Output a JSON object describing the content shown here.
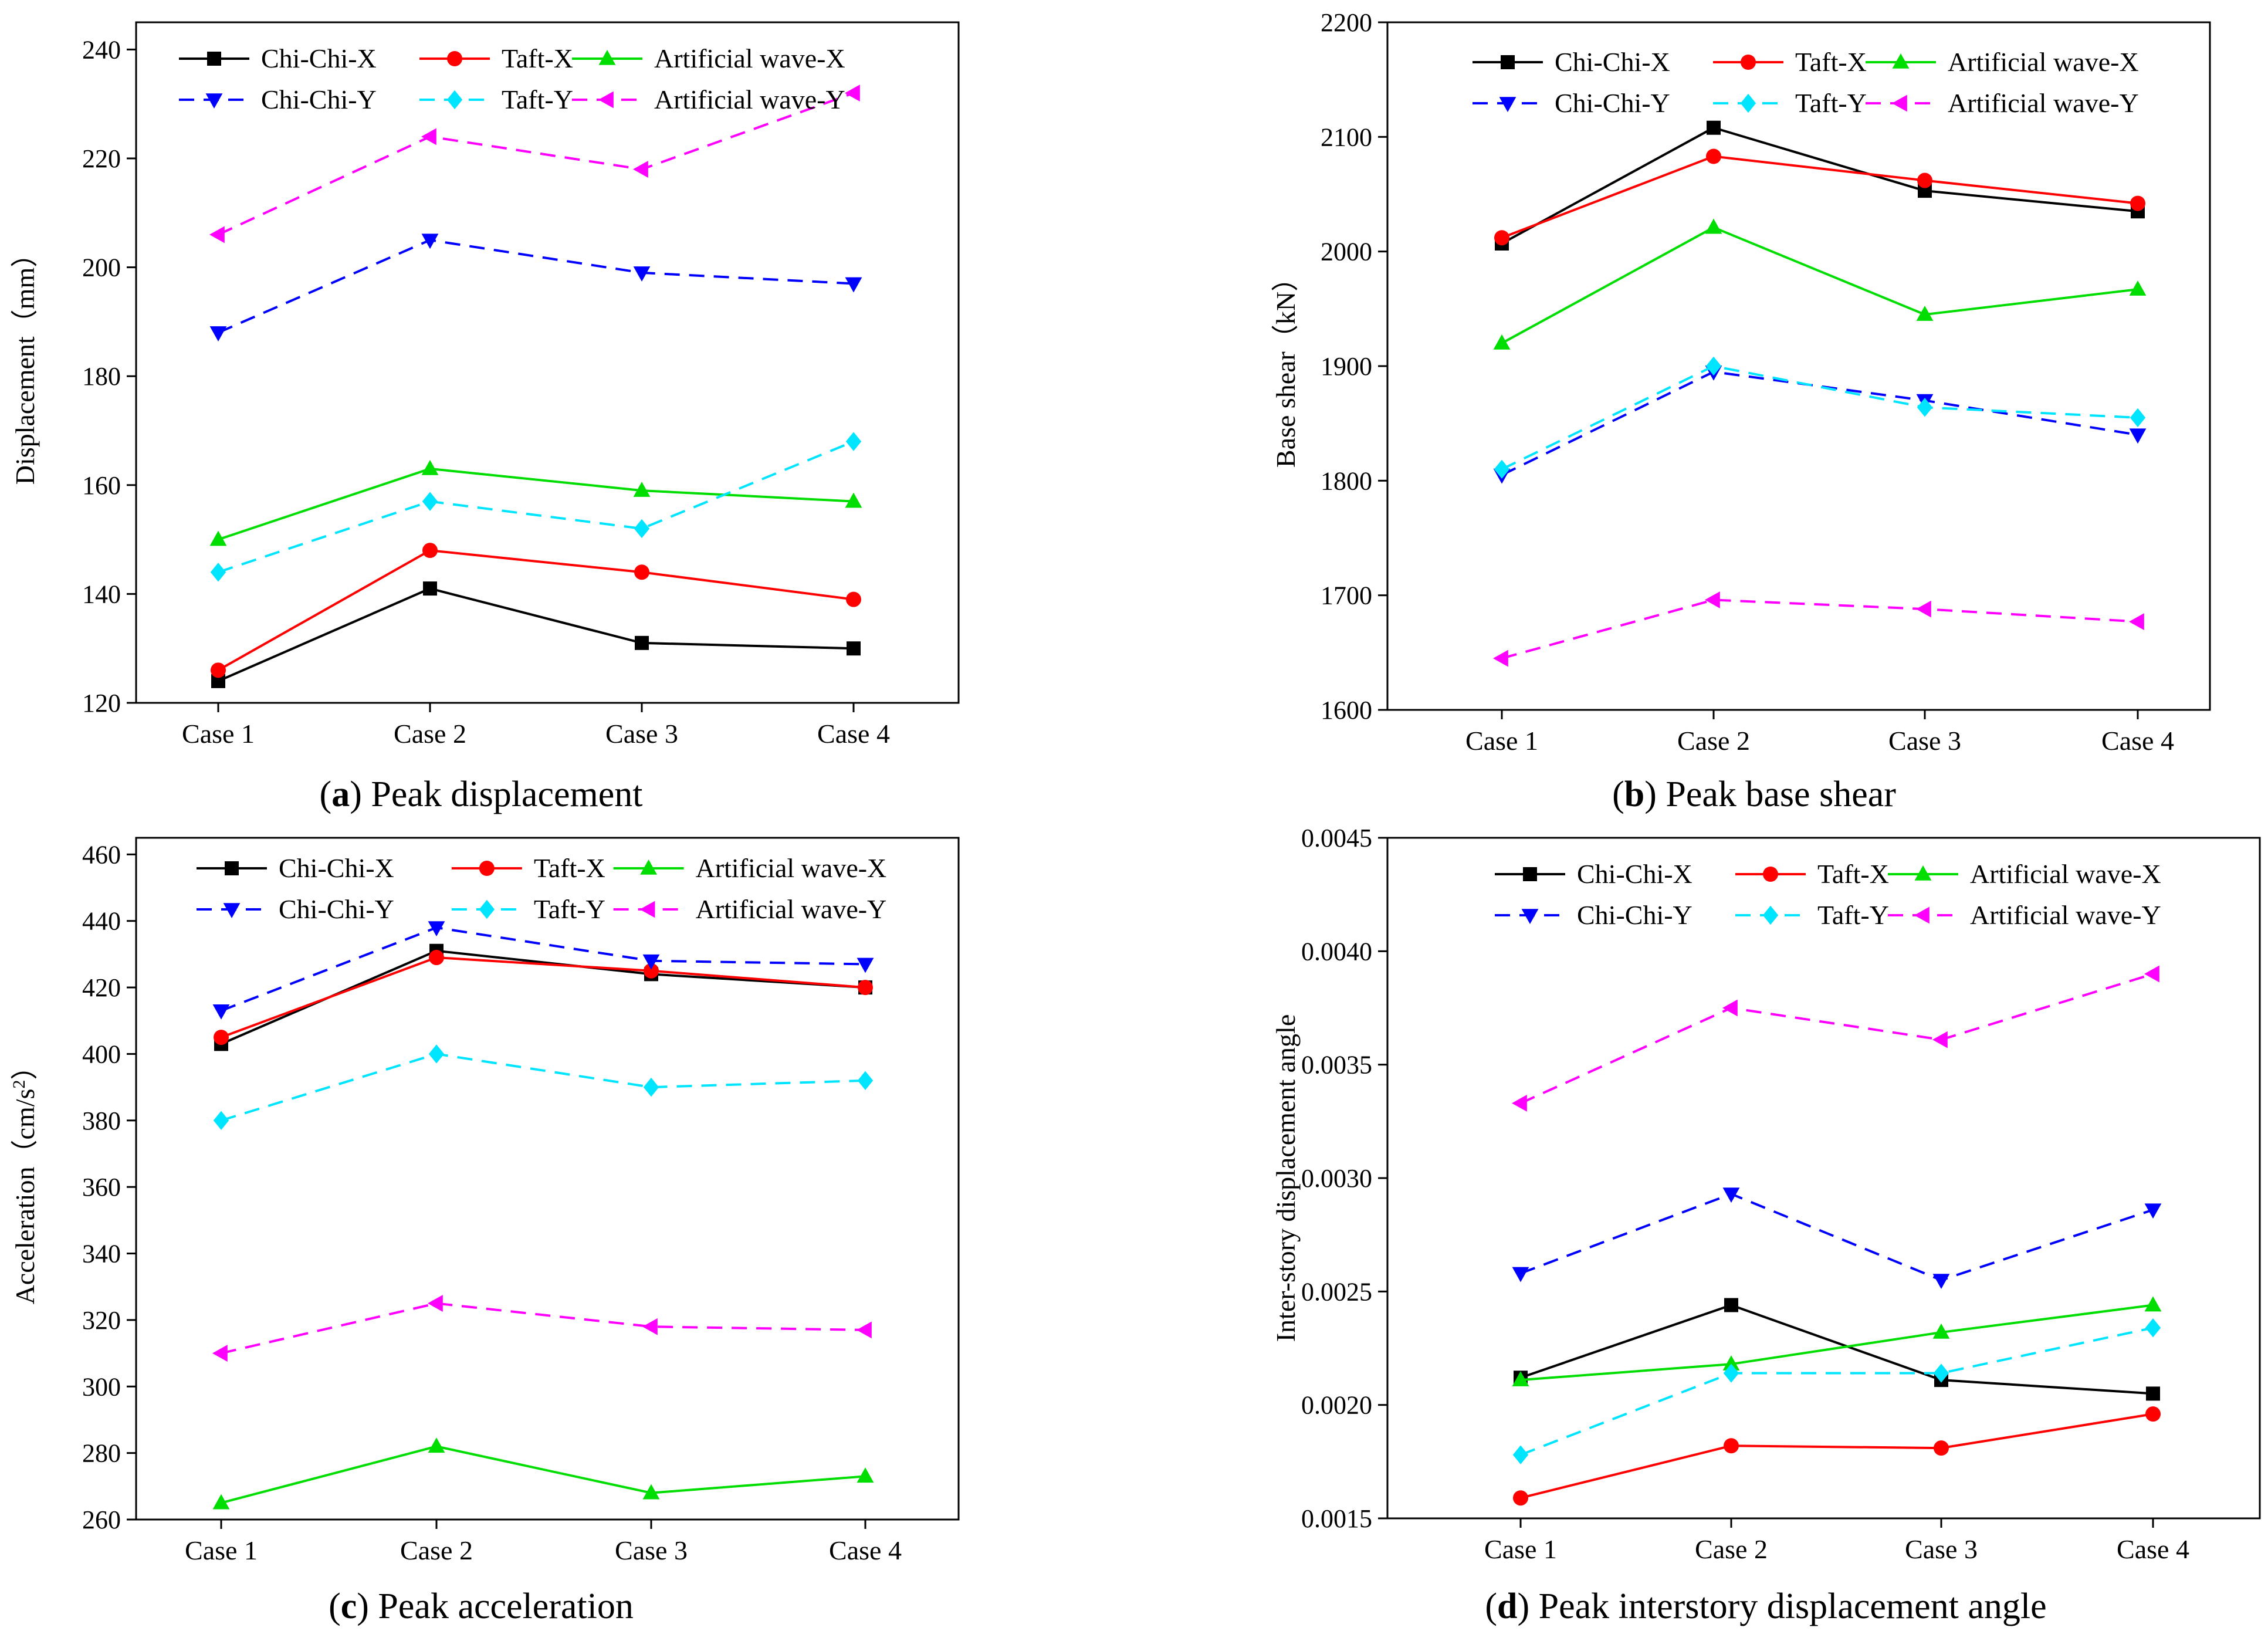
{
  "chart_data": [
    {
      "type": "line",
      "panel_letter": "a",
      "caption": "Peak displacement",
      "title": "",
      "xlabel": "",
      "ylabel": "Displacement（mm）",
      "categories": [
        "Case 1",
        "Case 2",
        "Case 3",
        "Case 4"
      ],
      "ylim": [
        120,
        245
      ],
      "yticks": [
        120,
        140,
        160,
        180,
        200,
        220,
        240
      ],
      "ytick_labels": [
        "120",
        "140",
        "160",
        "180",
        "200",
        "220",
        "240"
      ],
      "legend_position": "top",
      "series": [
        {
          "name": "Chi-Chi-X",
          "values": [
            124,
            141,
            131,
            130
          ],
          "color": "#000000",
          "marker": "square",
          "dashed": false
        },
        {
          "name": "Taft-X",
          "values": [
            126,
            148,
            144,
            139
          ],
          "color": "#ff0000",
          "marker": "circle",
          "dashed": false
        },
        {
          "name": "Artificial wave-X",
          "values": [
            150,
            163,
            159,
            157
          ],
          "color": "#00dd00",
          "marker": "triangle-up",
          "dashed": false
        },
        {
          "name": "Chi-Chi-Y",
          "values": [
            188,
            205,
            199,
            197
          ],
          "color": "#0000ff",
          "marker": "triangle-down",
          "dashed": true
        },
        {
          "name": "Taft-Y",
          "values": [
            144,
            157,
            152,
            168
          ],
          "color": "#00e5ff",
          "marker": "diamond",
          "dashed": true
        },
        {
          "name": "Artificial wave-Y",
          "values": [
            206,
            224,
            218,
            232
          ],
          "color": "#ff00ff",
          "marker": "triangle-left",
          "dashed": true
        }
      ]
    },
    {
      "type": "line",
      "panel_letter": "b",
      "caption": "Peak base shear",
      "title": "",
      "xlabel": "",
      "ylabel": "Base shear（kN）",
      "categories": [
        "Case 1",
        "Case 2",
        "Case 3",
        "Case 4"
      ],
      "ylim": [
        1600,
        2200
      ],
      "yticks": [
        1600,
        1700,
        1800,
        1900,
        2000,
        2100,
        2200
      ],
      "ytick_labels": [
        "1600",
        "1700",
        "1800",
        "1900",
        "2000",
        "2100",
        "2200"
      ],
      "legend_position": "top",
      "series": [
        {
          "name": "Chi-Chi-X",
          "values": [
            2007,
            2108,
            2053,
            2035
          ],
          "color": "#000000",
          "marker": "square",
          "dashed": false
        },
        {
          "name": "Taft-X",
          "values": [
            2012,
            2083,
            2062,
            2042
          ],
          "color": "#ff0000",
          "marker": "circle",
          "dashed": false
        },
        {
          "name": "Artificial wave-X",
          "values": [
            1920,
            2021,
            1945,
            1967
          ],
          "color": "#00dd00",
          "marker": "triangle-up",
          "dashed": false
        },
        {
          "name": "Chi-Chi-Y",
          "values": [
            1805,
            1895,
            1870,
            1840
          ],
          "color": "#0000ff",
          "marker": "triangle-down",
          "dashed": true
        },
        {
          "name": "Taft-Y",
          "values": [
            1810,
            1900,
            1864,
            1855
          ],
          "color": "#00e5ff",
          "marker": "diamond",
          "dashed": true
        },
        {
          "name": "Artificial wave-Y",
          "values": [
            1645,
            1696,
            1688,
            1677
          ],
          "color": "#ff00ff",
          "marker": "triangle-left",
          "dashed": true
        }
      ]
    },
    {
      "type": "line",
      "panel_letter": "c",
      "caption": "Peak acceleration",
      "title": "",
      "xlabel": "",
      "ylabel": "Acceleration（cm/s",
      "ylabel_superscript": "2",
      "ylabel_suffix": "）",
      "categories": [
        "Case 1",
        "Case 2",
        "Case 3",
        "Case 4"
      ],
      "ylim": [
        260,
        465
      ],
      "yticks": [
        260,
        280,
        300,
        320,
        340,
        360,
        380,
        400,
        420,
        440,
        460
      ],
      "ytick_labels": [
        "260",
        "280",
        "300",
        "320",
        "340",
        "360",
        "380",
        "400",
        "420",
        "440",
        "460"
      ],
      "legend_position": "top",
      "series": [
        {
          "name": "Chi-Chi-X",
          "values": [
            403,
            431,
            424,
            420
          ],
          "color": "#000000",
          "marker": "square",
          "dashed": false
        },
        {
          "name": "Taft-X",
          "values": [
            405,
            429,
            425,
            420
          ],
          "color": "#ff0000",
          "marker": "circle",
          "dashed": false
        },
        {
          "name": "Artificial wave-X",
          "values": [
            265,
            282,
            268,
            273
          ],
          "color": "#00dd00",
          "marker": "triangle-up",
          "dashed": false
        },
        {
          "name": "Chi-Chi-Y",
          "values": [
            413,
            438,
            428,
            427
          ],
          "color": "#0000ff",
          "marker": "triangle-down",
          "dashed": true
        },
        {
          "name": "Taft-Y",
          "values": [
            380,
            400,
            390,
            392
          ],
          "color": "#00e5ff",
          "marker": "diamond",
          "dashed": true
        },
        {
          "name": "Artificial wave-Y",
          "values": [
            310,
            325,
            318,
            317
          ],
          "color": "#ff00ff",
          "marker": "triangle-left",
          "dashed": true
        }
      ]
    },
    {
      "type": "line",
      "panel_letter": "d",
      "caption": "Peak interstory displacement angle",
      "title": "",
      "xlabel": "",
      "ylabel": "Inter-story displacement angle",
      "categories": [
        "Case 1",
        "Case 2",
        "Case 3",
        "Case 4"
      ],
      "ylim": [
        0.0015,
        0.0045
      ],
      "yticks": [
        0.0015,
        0.002,
        0.0025,
        0.003,
        0.0035,
        0.004,
        0.0045
      ],
      "ytick_labels": [
        "0.0015",
        "0.0020",
        "0.0025",
        "0.0030",
        "0.0035",
        "0.0040",
        "0.0045"
      ],
      "legend_position": "top",
      "series": [
        {
          "name": "Chi-Chi-X",
          "values": [
            0.00212,
            0.00244,
            0.00211,
            0.00205
          ],
          "color": "#000000",
          "marker": "square",
          "dashed": false
        },
        {
          "name": "Taft-X",
          "values": [
            0.00159,
            0.00182,
            0.00181,
            0.00196
          ],
          "color": "#ff0000",
          "marker": "circle",
          "dashed": false
        },
        {
          "name": "Artificial wave-X",
          "values": [
            0.00211,
            0.00218,
            0.00232,
            0.00244
          ],
          "color": "#00dd00",
          "marker": "triangle-up",
          "dashed": false
        },
        {
          "name": "Chi-Chi-Y",
          "values": [
            0.00258,
            0.00293,
            0.00255,
            0.00286
          ],
          "color": "#0000ff",
          "marker": "triangle-down",
          "dashed": true
        },
        {
          "name": "Taft-Y",
          "values": [
            0.00178,
            0.00214,
            0.00214,
            0.00234
          ],
          "color": "#00e5ff",
          "marker": "diamond",
          "dashed": true
        },
        {
          "name": "Artificial wave-Y",
          "values": [
            0.00333,
            0.00375,
            0.00361,
            0.0039
          ],
          "color": "#ff00ff",
          "marker": "triangle-left",
          "dashed": true
        }
      ]
    }
  ]
}
